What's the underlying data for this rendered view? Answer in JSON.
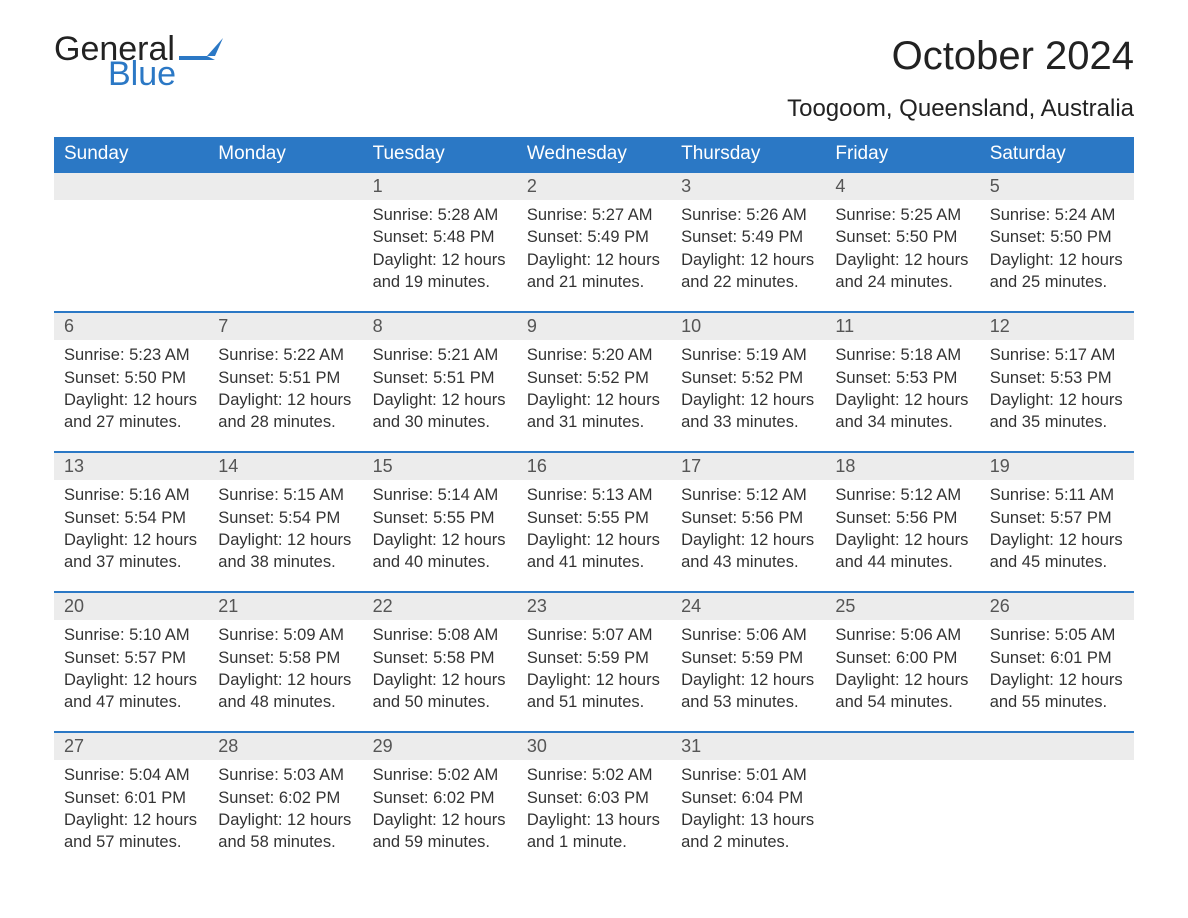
{
  "logo": {
    "text1": "General",
    "text2": "Blue",
    "color": "#2b78c5"
  },
  "title": "October 2024",
  "subtitle": "Toogoom, Queensland, Australia",
  "header_bg": "#2b78c5",
  "daynum_bg": "#ececec",
  "text_color": "#333333",
  "day_names": [
    "Sunday",
    "Monday",
    "Tuesday",
    "Wednesday",
    "Thursday",
    "Friday",
    "Saturday"
  ],
  "weeks": [
    [
      null,
      null,
      {
        "n": "1",
        "sunrise": "5:28 AM",
        "sunset": "5:48 PM",
        "daylight": "12 hours and 19 minutes."
      },
      {
        "n": "2",
        "sunrise": "5:27 AM",
        "sunset": "5:49 PM",
        "daylight": "12 hours and 21 minutes."
      },
      {
        "n": "3",
        "sunrise": "5:26 AM",
        "sunset": "5:49 PM",
        "daylight": "12 hours and 22 minutes."
      },
      {
        "n": "4",
        "sunrise": "5:25 AM",
        "sunset": "5:50 PM",
        "daylight": "12 hours and 24 minutes."
      },
      {
        "n": "5",
        "sunrise": "5:24 AM",
        "sunset": "5:50 PM",
        "daylight": "12 hours and 25 minutes."
      }
    ],
    [
      {
        "n": "6",
        "sunrise": "5:23 AM",
        "sunset": "5:50 PM",
        "daylight": "12 hours and 27 minutes."
      },
      {
        "n": "7",
        "sunrise": "5:22 AM",
        "sunset": "5:51 PM",
        "daylight": "12 hours and 28 minutes."
      },
      {
        "n": "8",
        "sunrise": "5:21 AM",
        "sunset": "5:51 PM",
        "daylight": "12 hours and 30 minutes."
      },
      {
        "n": "9",
        "sunrise": "5:20 AM",
        "sunset": "5:52 PM",
        "daylight": "12 hours and 31 minutes."
      },
      {
        "n": "10",
        "sunrise": "5:19 AM",
        "sunset": "5:52 PM",
        "daylight": "12 hours and 33 minutes."
      },
      {
        "n": "11",
        "sunrise": "5:18 AM",
        "sunset": "5:53 PM",
        "daylight": "12 hours and 34 minutes."
      },
      {
        "n": "12",
        "sunrise": "5:17 AM",
        "sunset": "5:53 PM",
        "daylight": "12 hours and 35 minutes."
      }
    ],
    [
      {
        "n": "13",
        "sunrise": "5:16 AM",
        "sunset": "5:54 PM",
        "daylight": "12 hours and 37 minutes."
      },
      {
        "n": "14",
        "sunrise": "5:15 AM",
        "sunset": "5:54 PM",
        "daylight": "12 hours and 38 minutes."
      },
      {
        "n": "15",
        "sunrise": "5:14 AM",
        "sunset": "5:55 PM",
        "daylight": "12 hours and 40 minutes."
      },
      {
        "n": "16",
        "sunrise": "5:13 AM",
        "sunset": "5:55 PM",
        "daylight": "12 hours and 41 minutes."
      },
      {
        "n": "17",
        "sunrise": "5:12 AM",
        "sunset": "5:56 PM",
        "daylight": "12 hours and 43 minutes."
      },
      {
        "n": "18",
        "sunrise": "5:12 AM",
        "sunset": "5:56 PM",
        "daylight": "12 hours and 44 minutes."
      },
      {
        "n": "19",
        "sunrise": "5:11 AM",
        "sunset": "5:57 PM",
        "daylight": "12 hours and 45 minutes."
      }
    ],
    [
      {
        "n": "20",
        "sunrise": "5:10 AM",
        "sunset": "5:57 PM",
        "daylight": "12 hours and 47 minutes."
      },
      {
        "n": "21",
        "sunrise": "5:09 AM",
        "sunset": "5:58 PM",
        "daylight": "12 hours and 48 minutes."
      },
      {
        "n": "22",
        "sunrise": "5:08 AM",
        "sunset": "5:58 PM",
        "daylight": "12 hours and 50 minutes."
      },
      {
        "n": "23",
        "sunrise": "5:07 AM",
        "sunset": "5:59 PM",
        "daylight": "12 hours and 51 minutes."
      },
      {
        "n": "24",
        "sunrise": "5:06 AM",
        "sunset": "5:59 PM",
        "daylight": "12 hours and 53 minutes."
      },
      {
        "n": "25",
        "sunrise": "5:06 AM",
        "sunset": "6:00 PM",
        "daylight": "12 hours and 54 minutes."
      },
      {
        "n": "26",
        "sunrise": "5:05 AM",
        "sunset": "6:01 PM",
        "daylight": "12 hours and 55 minutes."
      }
    ],
    [
      {
        "n": "27",
        "sunrise": "5:04 AM",
        "sunset": "6:01 PM",
        "daylight": "12 hours and 57 minutes."
      },
      {
        "n": "28",
        "sunrise": "5:03 AM",
        "sunset": "6:02 PM",
        "daylight": "12 hours and 58 minutes."
      },
      {
        "n": "29",
        "sunrise": "5:02 AM",
        "sunset": "6:02 PM",
        "daylight": "12 hours and 59 minutes."
      },
      {
        "n": "30",
        "sunrise": "5:02 AM",
        "sunset": "6:03 PM",
        "daylight": "13 hours and 1 minute."
      },
      {
        "n": "31",
        "sunrise": "5:01 AM",
        "sunset": "6:04 PM",
        "daylight": "13 hours and 2 minutes."
      },
      null,
      null
    ]
  ],
  "labels": {
    "sunrise": "Sunrise: ",
    "sunset": "Sunset: ",
    "daylight": "Daylight: "
  }
}
